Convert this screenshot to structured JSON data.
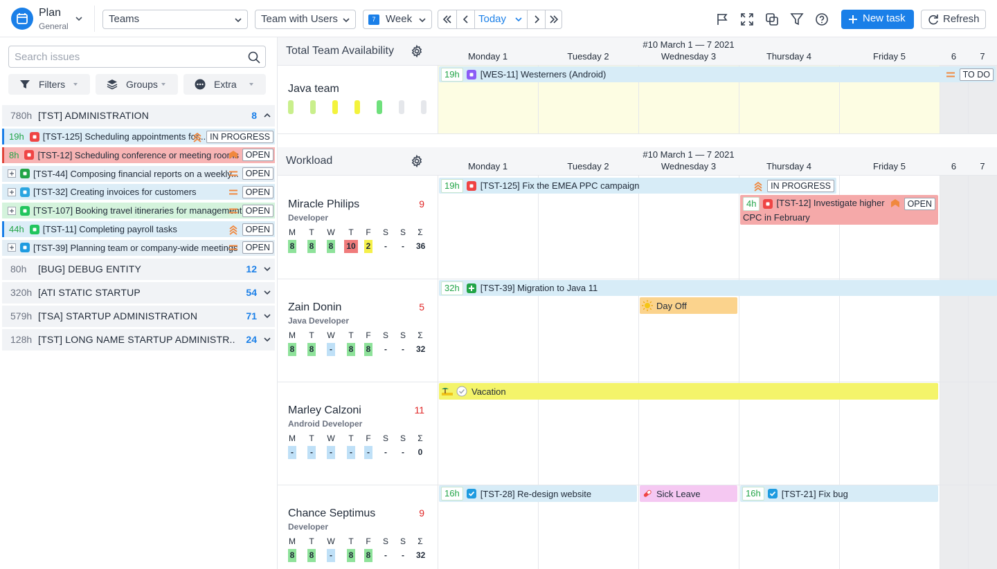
{
  "toolbar": {
    "app_title": "Plan",
    "app_subtitle": "General",
    "teams": "Teams",
    "view": "Team with Users",
    "period": "Week",
    "period_day": "7",
    "today": "Today",
    "new_task": "New task",
    "refresh": "Refresh"
  },
  "sidebar": {
    "search_placeholder": "Search issues",
    "filters": "Filters",
    "groups_button": "Groups",
    "extra": "Extra",
    "groups": [
      {
        "hours": "780h",
        "name": "[TST] ADMINISTRATION",
        "count": 8,
        "issues": [
          {
            "hours": "19h",
            "title": "[TST-125] Scheduling appointments for...",
            "status": "IN PROGRESS"
          },
          {
            "hours": "8h",
            "title": "[TST-12] Scheduling conference or meeting rooms",
            "status": "OPEN"
          },
          {
            "title": "[TST-44] Composing financial reports on a weekly...",
            "status": "OPEN"
          },
          {
            "title": "[TST-32] Creating invoices for customers",
            "status": "OPEN"
          },
          {
            "title": "[TST-107] Booking travel itineraries for management...",
            "status": "OPEN"
          },
          {
            "hours": "44h",
            "title": "[TST-11] Completing payroll tasks",
            "status": "OPEN"
          },
          {
            "title": "[TST-39] Planning team or company-wide meetings",
            "status": "OPEN"
          }
        ]
      },
      {
        "hours": "80h",
        "name": "[BUG] DEBUG ENTITY",
        "count": 12
      },
      {
        "hours": "320h",
        "name": "[ATI STATIC STARTUP",
        "count": 54
      },
      {
        "hours": "579h",
        "name": "[TSA] STARTUP ADMINISTRATION",
        "count": 71
      },
      {
        "hours": "128h",
        "name": "[TST] LONG NAME STARTUP ADMINISTR..",
        "count": 24
      }
    ]
  },
  "calendar": {
    "week": "#10 March 1 — 7 2021",
    "days": [
      "Monday 1",
      "Tuesday 2",
      "Wednesday 3",
      "Thursday 4",
      "Friday 5",
      "6",
      "7"
    ],
    "availability": {
      "title": "Total Team Availability",
      "team": "Java team",
      "task": {
        "hours": "19h",
        "title": "[WES-11] Westerners (Android)",
        "status": "TO DO"
      }
    },
    "workload": {
      "title": "Workload",
      "weekday_letters": [
        "M",
        "T",
        "W",
        "T",
        "F",
        "S",
        "S",
        "Σ"
      ],
      "users": [
        {
          "name": "Miracle Philips",
          "role": "Developer",
          "count": 9,
          "hours": [
            8,
            8,
            8,
            10,
            2,
            "-",
            "-",
            36
          ],
          "tasks": [
            {
              "hours": "19h",
              "title": "[TST-125] Fix the EMEA PPC campaign",
              "status": "IN PROGRESS"
            },
            {
              "hours": "4h",
              "title": "[TST-12] Investigate higher CPC in February",
              "status": "OPEN"
            }
          ]
        },
        {
          "name": "Zain Donin",
          "role": "Java Developer",
          "count": 5,
          "hours": [
            8,
            8,
            "-",
            8,
            8,
            "-",
            "-",
            32
          ],
          "tasks": [
            {
              "hours": "32h",
              "title": "[TST-39] Migration to Java 11"
            },
            {
              "title": "Day Off"
            }
          ]
        },
        {
          "name": "Marley Calzoni",
          "role": "Android Developer",
          "count": 11,
          "hours": [
            "-",
            "-",
            "-",
            "-",
            "-",
            "-",
            "-",
            0
          ],
          "tasks": [
            {
              "title": "Vacation"
            }
          ]
        },
        {
          "name": "Chance Septimus",
          "role": "Developer",
          "count": 9,
          "hours": [
            8,
            8,
            "-",
            8,
            8,
            "-",
            "-",
            32
          ],
          "tasks": [
            {
              "hours": "16h",
              "title": "[TST-28] Re-design website"
            },
            {
              "title": "Sick Leave"
            },
            {
              "hours": "16h",
              "title": "[TST-21] Fix bug"
            }
          ]
        }
      ]
    }
  }
}
